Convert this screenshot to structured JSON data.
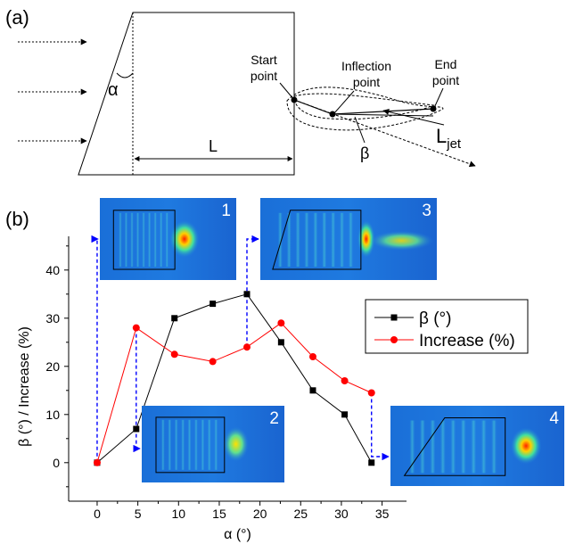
{
  "panel_a": {
    "label": "(a)",
    "alpha_symbol": "α",
    "length_symbol": "L",
    "start_point": [
      "Start",
      "point"
    ],
    "inflection_point": [
      "Inflection",
      "point"
    ],
    "end_point": [
      "End",
      "point"
    ],
    "beta_symbol": "β",
    "ljet_main": "L",
    "ljet_sub": "jet"
  },
  "panel_b": {
    "label": "(b)",
    "inset_numbers": [
      "1",
      "2",
      "3",
      "4"
    ]
  },
  "colors": {
    "series_beta": "#000000",
    "series_increase": "#ff0000",
    "connector": "#0000ff"
  },
  "chart_data": {
    "type": "line",
    "xlabel": "α (°)",
    "ylabel": "β (°) / Increase (%)",
    "xlim": [
      -3.5,
      38
    ],
    "ylim": [
      -8,
      47
    ],
    "xticks": [
      0,
      5,
      10,
      15,
      20,
      25,
      30,
      35
    ],
    "yticks": [
      0,
      10,
      20,
      30,
      40
    ],
    "legend_position": "right",
    "series": [
      {
        "name": "β (°)",
        "marker": "square",
        "x": [
          0,
          4.8,
          9.5,
          14.2,
          18.4,
          22.6,
          26.5,
          30.4,
          33.7
        ],
        "y": [
          0,
          7,
          30,
          33,
          35,
          25,
          15,
          10,
          0
        ]
      },
      {
        "name": "Increase (%)",
        "marker": "circle",
        "x": [
          0,
          4.8,
          9.5,
          14.2,
          18.4,
          22.6,
          26.5,
          30.4,
          33.7
        ],
        "y": [
          0,
          28,
          22.5,
          21,
          24,
          29,
          22,
          17,
          14.5
        ]
      }
    ]
  }
}
